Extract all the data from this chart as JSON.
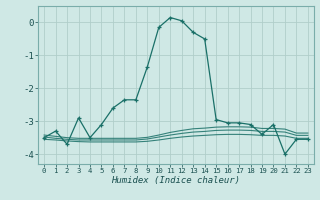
{
  "title": "",
  "xlabel": "Humidex (Indice chaleur)",
  "ylabel": "",
  "bg_color": "#cfe8e5",
  "grid_color": "#b0ceca",
  "line_color": "#1a7068",
  "xlim": [
    -0.5,
    23.5
  ],
  "ylim": [
    -4.3,
    0.5
  ],
  "yticks": [
    0,
    -1,
    -2,
    -3,
    -4
  ],
  "xticks": [
    0,
    1,
    2,
    3,
    4,
    5,
    6,
    7,
    8,
    9,
    10,
    11,
    12,
    13,
    14,
    15,
    16,
    17,
    18,
    19,
    20,
    21,
    22,
    23
  ],
  "main_y": [
    -3.5,
    -3.3,
    -3.7,
    -2.9,
    -3.5,
    -3.1,
    -2.6,
    -2.35,
    -2.35,
    -1.35,
    -0.15,
    0.15,
    0.05,
    -0.3,
    -0.5,
    -2.95,
    -3.05,
    -3.05,
    -3.1,
    -3.4,
    -3.1,
    -4.0,
    -3.55,
    -3.55
  ],
  "flat1_y": [
    -3.55,
    -3.57,
    -3.6,
    -3.62,
    -3.63,
    -3.63,
    -3.63,
    -3.63,
    -3.63,
    -3.61,
    -3.57,
    -3.52,
    -3.48,
    -3.45,
    -3.43,
    -3.41,
    -3.4,
    -3.4,
    -3.41,
    -3.43,
    -3.43,
    -3.45,
    -3.52,
    -3.52
  ],
  "flat2_y": [
    -3.48,
    -3.52,
    -3.55,
    -3.57,
    -3.57,
    -3.57,
    -3.57,
    -3.57,
    -3.57,
    -3.54,
    -3.48,
    -3.42,
    -3.37,
    -3.33,
    -3.31,
    -3.28,
    -3.27,
    -3.27,
    -3.28,
    -3.31,
    -3.31,
    -3.33,
    -3.43,
    -3.43
  ],
  "flat3_y": [
    -3.42,
    -3.46,
    -3.5,
    -3.52,
    -3.52,
    -3.52,
    -3.52,
    -3.52,
    -3.52,
    -3.49,
    -3.42,
    -3.34,
    -3.28,
    -3.23,
    -3.21,
    -3.18,
    -3.17,
    -3.17,
    -3.18,
    -3.22,
    -3.22,
    -3.24,
    -3.36,
    -3.36
  ]
}
